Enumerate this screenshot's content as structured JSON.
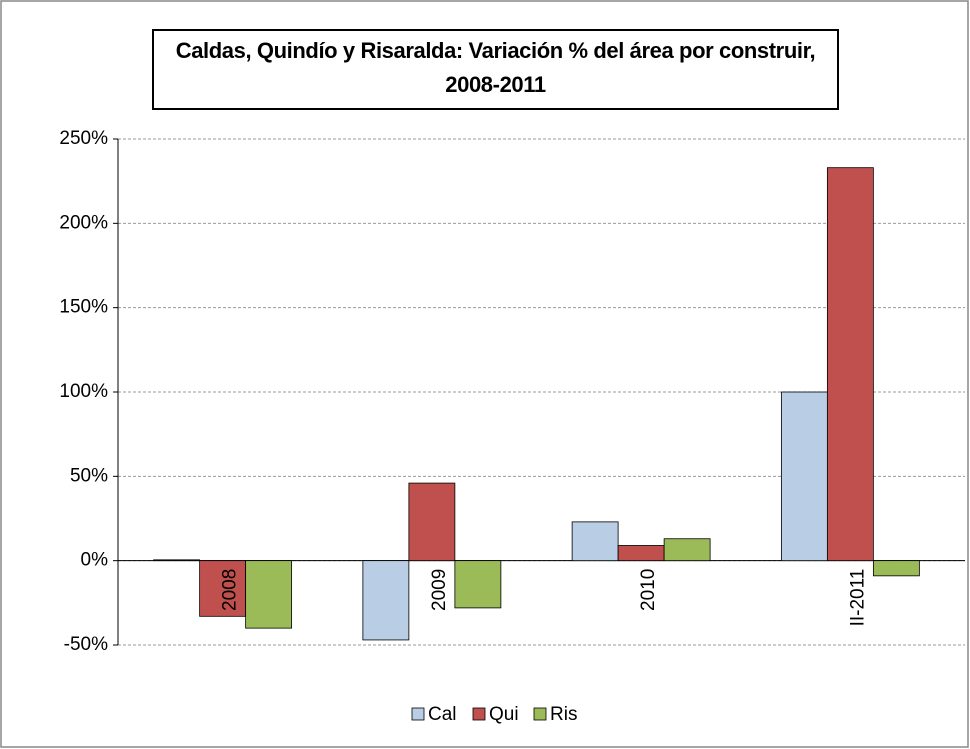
{
  "chart_data": {
    "type": "bar",
    "title": "Caldas, Quindío y Risaralda: Variación % del área por construir, 2008-2011",
    "categories": [
      "2008",
      "2009",
      "2010",
      "II-2011"
    ],
    "series": [
      {
        "name": "Cal",
        "color": "#b9cde5",
        "values": [
          0.5,
          -47,
          23,
          100
        ]
      },
      {
        "name": "Qui",
        "color": "#c0504d",
        "values": [
          -33,
          46,
          9,
          233
        ]
      },
      {
        "name": "Ris",
        "color": "#9bbb59",
        "values": [
          -40,
          -28,
          13,
          -9
        ]
      }
    ],
    "ylim": [
      -50,
      250
    ],
    "yticks": [
      {
        "value": -50,
        "label": "-50%"
      },
      {
        "value": 0,
        "label": "0%"
      },
      {
        "value": 50,
        "label": "50%"
      },
      {
        "value": 100,
        "label": "100%"
      },
      {
        "value": 150,
        "label": "150%"
      },
      {
        "value": 200,
        "label": "200%"
      },
      {
        "value": 250,
        "label": "250%"
      }
    ],
    "grid": true,
    "legend": "bottom"
  }
}
